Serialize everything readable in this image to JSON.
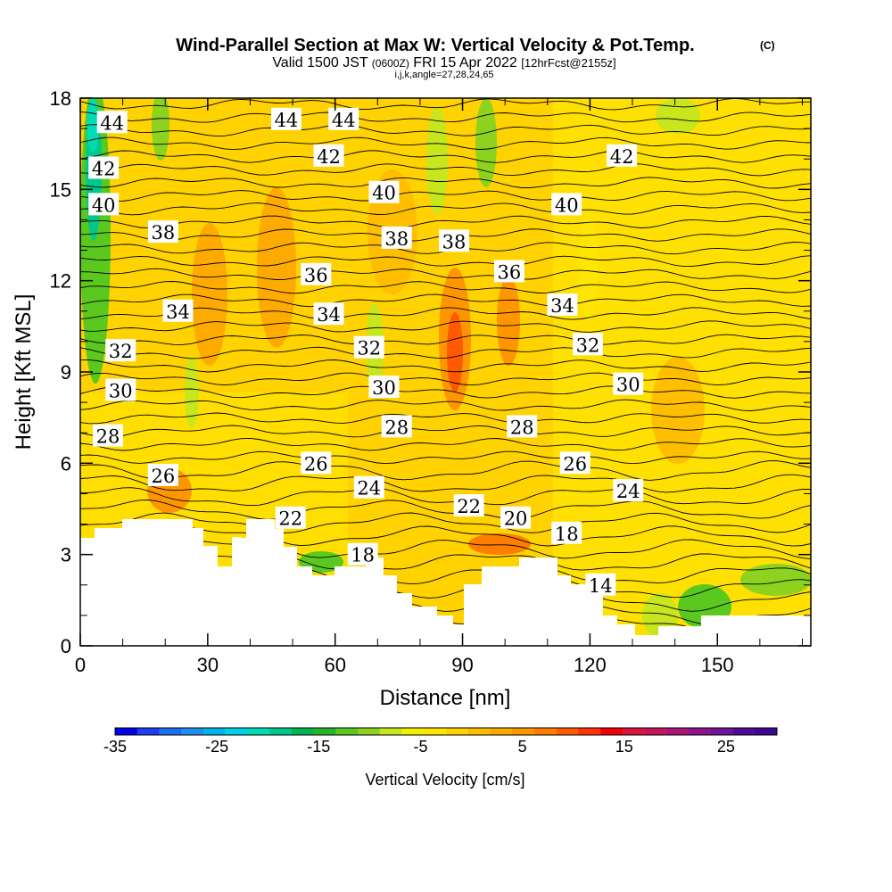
{
  "chart_data": {
    "type": "heatmap",
    "title": "Wind-Parallel Section at Max W: Vertical Velocity & Pot.Temp.",
    "title_mark": "(C)",
    "subtitle": {
      "valid_prefix": "Valid 1500 JST",
      "utc": "(0600Z)",
      "date": "FRI 15 Apr 2022",
      "forecast": "[12hrFcst@2155z]"
    },
    "section_info": "i,j,k,angle=27,28,24,65",
    "xlabel": "Distance [nm]",
    "ylabel": "Height [Kft MSL]",
    "xlim": [
      0,
      172
    ],
    "ylim": [
      0,
      18
    ],
    "x_ticks": [
      "0",
      "30",
      "60",
      "90",
      "120",
      "150"
    ],
    "x_tick_values": [
      0,
      30,
      60,
      90,
      120,
      150
    ],
    "y_ticks": [
      "0",
      "3",
      "6",
      "9",
      "12",
      "15",
      "18"
    ],
    "y_tick_values": [
      0,
      3,
      6,
      9,
      12,
      15,
      18
    ],
    "colorbar": {
      "label": "Vertical Velocity [cm/s]",
      "ticks": [
        "-35",
        "-25",
        "-15",
        "-5",
        "5",
        "15",
        "25"
      ],
      "tick_values": [
        -35,
        -25,
        -15,
        -5,
        5,
        15,
        25
      ],
      "range": [
        -35,
        30
      ],
      "step": 2.5,
      "colors": [
        "#0000ee",
        "#1e3cf0",
        "#1e6ef0",
        "#1e8ff0",
        "#00b4f0",
        "#00d2e6",
        "#00dcb4",
        "#00c88c",
        "#00b450",
        "#28b428",
        "#5ac81e",
        "#8cd21e",
        "#c8e61e",
        "#f0f000",
        "#ffe600",
        "#ffd200",
        "#ffbe00",
        "#ffaa00",
        "#ff9600",
        "#ff7d00",
        "#ff5a00",
        "#ff3200",
        "#f00000",
        "#dc143c",
        "#c8145a",
        "#aa1478",
        "#8c148c",
        "#6e1496",
        "#500a96",
        "#3c0a8c"
      ]
    },
    "contour_variable": "Potential temperature",
    "contour_labels": [
      {
        "text": "44",
        "x": 7.5,
        "y": 17.2
      },
      {
        "text": "44",
        "x": 48.5,
        "y": 17.3
      },
      {
        "text": "44",
        "x": 62,
        "y": 17.3
      },
      {
        "text": "42",
        "x": 5.5,
        "y": 15.7
      },
      {
        "text": "42",
        "x": 58.5,
        "y": 16.1
      },
      {
        "text": "42",
        "x": 127.5,
        "y": 16.1
      },
      {
        "text": "40",
        "x": 5.5,
        "y": 14.5
      },
      {
        "text": "40",
        "x": 71.5,
        "y": 14.9
      },
      {
        "text": "40",
        "x": 114.5,
        "y": 14.5
      },
      {
        "text": "38",
        "x": 19.5,
        "y": 13.6
      },
      {
        "text": "38",
        "x": 74.5,
        "y": 13.4
      },
      {
        "text": "38",
        "x": 88,
        "y": 13.3
      },
      {
        "text": "36",
        "x": 55.5,
        "y": 12.2
      },
      {
        "text": "36",
        "x": 101,
        "y": 12.3
      },
      {
        "text": "34",
        "x": 23,
        "y": 11.0
      },
      {
        "text": "34",
        "x": 58.5,
        "y": 10.9
      },
      {
        "text": "34",
        "x": 113.5,
        "y": 11.2
      },
      {
        "text": "32",
        "x": 9.5,
        "y": 9.7
      },
      {
        "text": "32",
        "x": 68,
        "y": 9.8
      },
      {
        "text": "32",
        "x": 119.5,
        "y": 9.9
      },
      {
        "text": "30",
        "x": 9.5,
        "y": 8.4
      },
      {
        "text": "30",
        "x": 71.5,
        "y": 8.5
      },
      {
        "text": "30",
        "x": 129,
        "y": 8.6
      },
      {
        "text": "28",
        "x": 6.5,
        "y": 6.9
      },
      {
        "text": "28",
        "x": 74.5,
        "y": 7.2
      },
      {
        "text": "28",
        "x": 104,
        "y": 7.2
      },
      {
        "text": "26",
        "x": 19.5,
        "y": 5.6
      },
      {
        "text": "26",
        "x": 55.5,
        "y": 6.0
      },
      {
        "text": "26",
        "x": 116.5,
        "y": 6.0
      },
      {
        "text": "24",
        "x": 68,
        "y": 5.2
      },
      {
        "text": "24",
        "x": 129,
        "y": 5.1
      },
      {
        "text": "22",
        "x": 49.5,
        "y": 4.2
      },
      {
        "text": "22",
        "x": 91.5,
        "y": 4.6
      },
      {
        "text": "20",
        "x": 102.5,
        "y": 4.2
      },
      {
        "text": "18",
        "x": 66.5,
        "y": 3.0
      },
      {
        "text": "18",
        "x": 114.5,
        "y": 3.7
      },
      {
        "text": "14",
        "x": 122.5,
        "y": 2.0
      }
    ]
  }
}
